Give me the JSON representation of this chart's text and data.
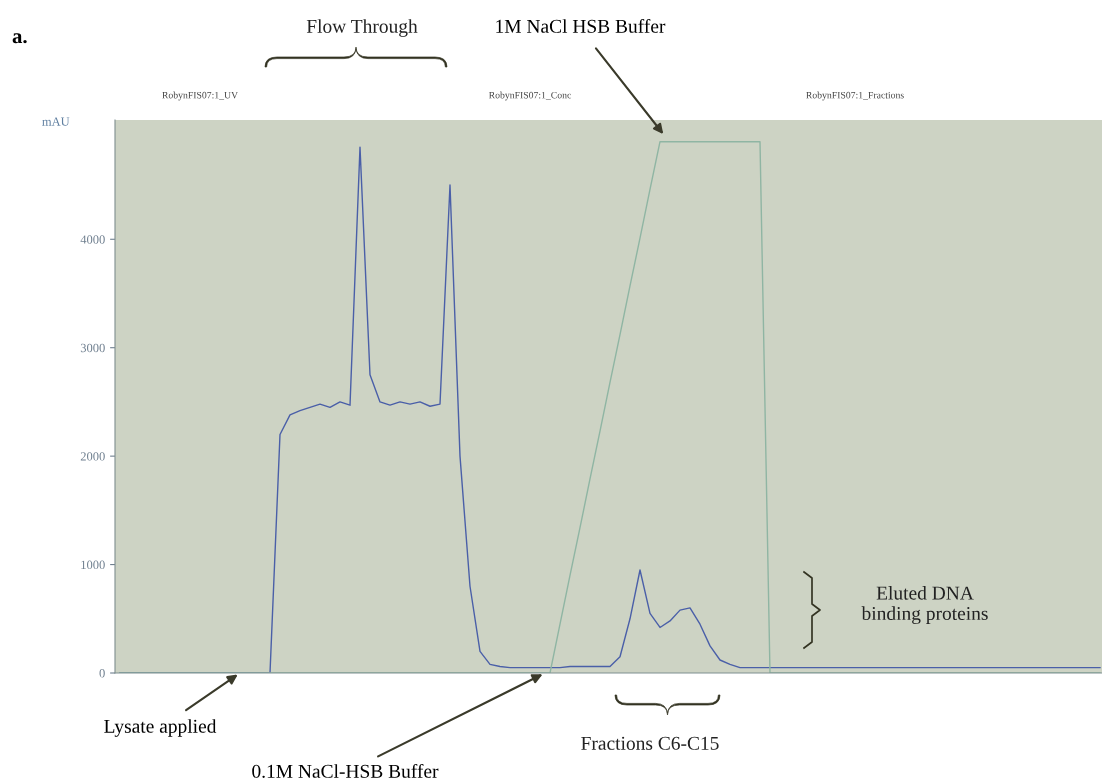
{
  "chart_data": {
    "type": "line",
    "title": "a.",
    "ylabel": "mAU",
    "categories": [
      null,
      null,
      null,
      null,
      null,
      null,
      null,
      null,
      null,
      null,
      null,
      null,
      null,
      null,
      null,
      null,
      null,
      null,
      null,
      null,
      null,
      null,
      null,
      null,
      null,
      null,
      null,
      null,
      null,
      null,
      null,
      null,
      null,
      null,
      null,
      null,
      null,
      null,
      null,
      null,
      null,
      null,
      null,
      null,
      null,
      null,
      null,
      null,
      null,
      null,
      null,
      null,
      null,
      null,
      null,
      null,
      null,
      null,
      null,
      null,
      null,
      null,
      null,
      null,
      null,
      null,
      null,
      null,
      null,
      null,
      null,
      null,
      null,
      null,
      null,
      null,
      null,
      null,
      null,
      null,
      null,
      null,
      null,
      null,
      null,
      null,
      null,
      null,
      null,
      null,
      null,
      null,
      null,
      null,
      null,
      null,
      null,
      null,
      null
    ],
    "series": [
      {
        "color": "#4a5fa8",
        "values": [
          0,
          0,
          0,
          0,
          0,
          0,
          0,
          0,
          0,
          0,
          0,
          0,
          0,
          0,
          0,
          0,
          2200,
          2380,
          2420,
          2450,
          2480,
          2450,
          2500,
          2470,
          4850,
          2750,
          2500,
          2470,
          2500,
          2480,
          2500,
          2460,
          2480,
          4500,
          2000,
          800,
          200,
          80,
          60,
          50,
          50,
          50,
          50,
          50,
          50,
          60,
          60,
          60,
          60,
          60,
          150,
          500,
          950,
          550,
          420,
          480,
          580,
          600,
          450,
          250,
          120,
          80,
          50,
          50,
          50,
          50,
          50,
          50,
          50,
          50,
          50,
          50,
          50,
          50,
          50,
          50,
          50,
          50,
          50,
          50,
          50,
          50,
          50,
          50,
          50,
          50,
          50,
          50,
          50,
          50,
          50,
          50,
          50,
          50,
          50,
          50,
          50,
          50,
          50
        ]
      },
      {
        "color": "#8fb5a3",
        "values": [
          0,
          0,
          0,
          0,
          0,
          0,
          0,
          0,
          0,
          0,
          0,
          0,
          0,
          0,
          0,
          0,
          0,
          0,
          0,
          0,
          0,
          0,
          0,
          0,
          0,
          0,
          0,
          0,
          0,
          0,
          0,
          0,
          0,
          0,
          0,
          0,
          0,
          0,
          0,
          0,
          0,
          0,
          0,
          0,
          450,
          900,
          1340,
          1790,
          2230,
          2680,
          3120,
          3570,
          4010,
          4460,
          4900,
          4900,
          4900,
          4900,
          4900,
          4900,
          4900,
          4900,
          4900,
          4900,
          4900,
          0,
          0,
          0,
          0,
          0,
          0,
          0,
          0,
          0,
          0,
          0,
          0,
          0,
          0,
          0,
          0,
          0,
          0,
          0,
          0,
          0,
          0,
          0,
          0,
          0,
          0,
          0,
          0,
          0,
          0,
          0,
          0,
          0,
          0
        ]
      }
    ],
    "ylim": [
      0,
      5100
    ],
    "yticks": [
      0,
      1000,
      2000,
      3000,
      4000
    ],
    "tick_labels": "y",
    "grid": false,
    "legend": false,
    "annotations": [
      "Flow Through",
      "1M NaCl HSB Buffer",
      "Eluted DNA\nbinding proteins",
      "Lysate applied",
      "0.1M NaCl-HSB Buffer",
      "Fractions C6-C15",
      "RobynFIS07:1_UV",
      "RobynFIS07:1_Conc",
      "RobynFIS07:1_Fractions"
    ]
  }
}
